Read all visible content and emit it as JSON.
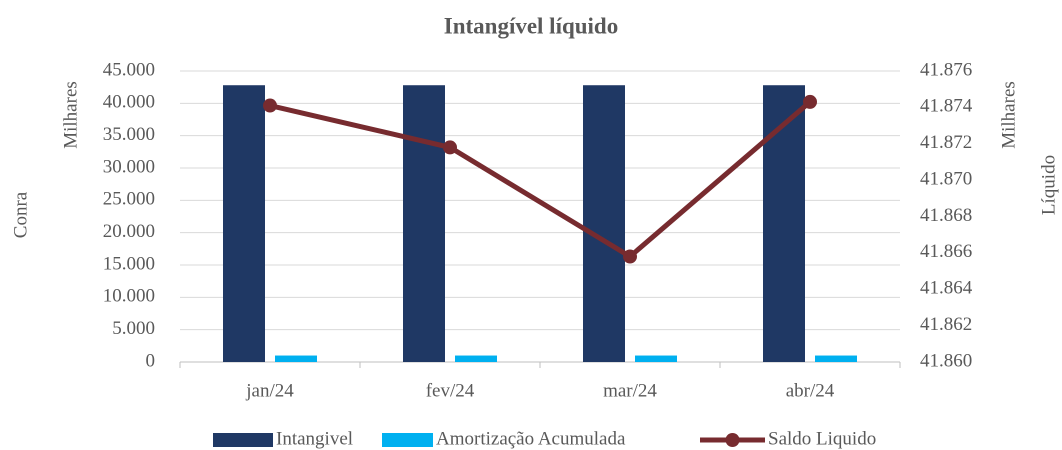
{
  "chart_data": {
    "type": "bar_line",
    "title": "Intangível líquido",
    "y_axis_label": "Milhares",
    "y_axis_title": "Conra",
    "y2_axis_label": "Milhares",
    "y2_axis_title": "Líquido",
    "categories": [
      "jan/24",
      "fev/24",
      "mar/24",
      "abr/24"
    ],
    "series": [
      {
        "name": "Intangivel",
        "type": "bar",
        "color": "#1f3864",
        "values": [
          42800,
          42800,
          42800,
          42800
        ]
      },
      {
        "name": "Amortização Acumulada",
        "type": "bar",
        "color": "#00b0f0",
        "values": [
          1000,
          1000,
          1000,
          1000
        ]
      },
      {
        "name": "Saldo Liquido",
        "type": "line",
        "axis": "y2",
        "color": "#772b2f",
        "values": [
          41874.1,
          41871.8,
          41865.8,
          41874.3
        ]
      }
    ],
    "ylim": [
      0,
      45000
    ],
    "yticks": [
      0,
      {
        "value": 5000,
        "label": "5.000"
      },
      {
        "value": 10000,
        "label": "10.000"
      },
      {
        "value": 15000,
        "label": "15.000"
      },
      {
        "value": 20000,
        "label": "20.000"
      },
      {
        "value": 25000,
        "label": "25.000"
      },
      {
        "value": 30000,
        "label": "30.000"
      },
      {
        "value": 35000,
        "label": "35.000"
      },
      {
        "value": 40000,
        "label": "40.000"
      },
      {
        "value": 45000,
        "label": "45.000"
      }
    ],
    "y2lim": [
      41860,
      41876
    ],
    "y2ticks": [
      {
        "value": 41860,
        "label": "41.860"
      },
      {
        "value": 41862,
        "label": "41.862"
      },
      {
        "value": 41864,
        "label": "41.864"
      },
      {
        "value": 41866,
        "label": "41.866"
      },
      {
        "value": 41868,
        "label": "41.868"
      },
      {
        "value": 41870,
        "label": "41.870"
      },
      {
        "value": 41872,
        "label": "41.872"
      },
      {
        "value": 41874,
        "label": "41.874"
      },
      {
        "value": 41876,
        "label": "41.876"
      }
    ],
    "grid": true,
    "legend": "bottom"
  }
}
